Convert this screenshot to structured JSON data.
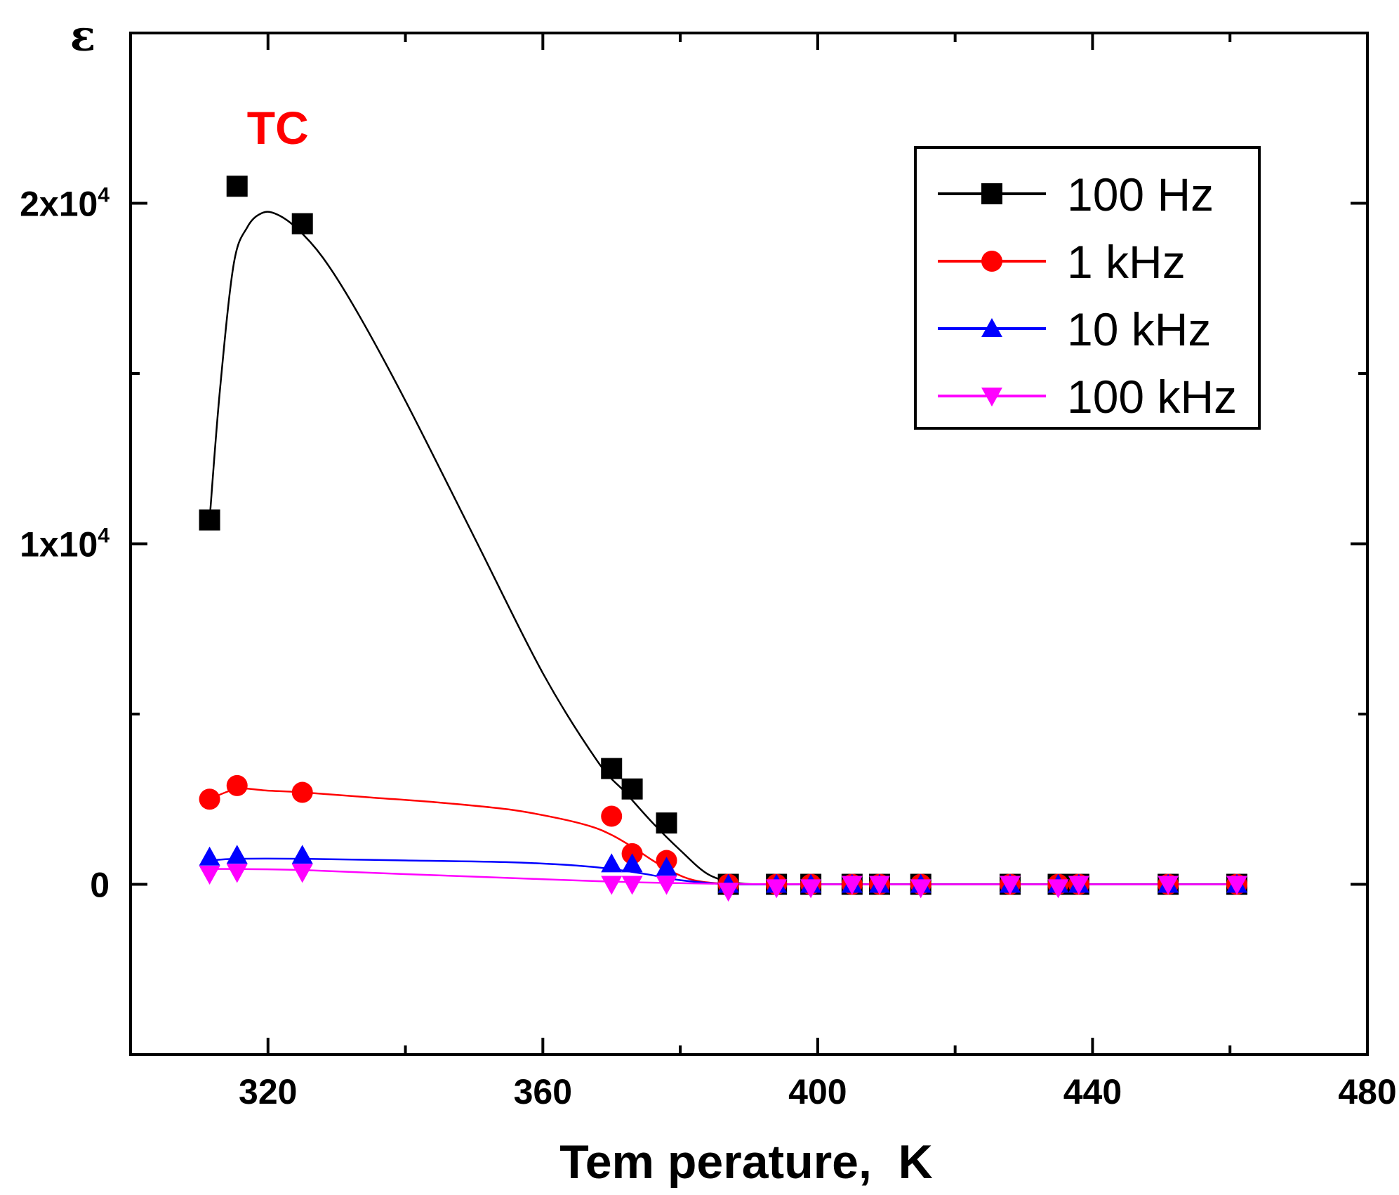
{
  "chart_data": {
    "type": "scatter",
    "title": "",
    "xlabel": "Tem perature,  K",
    "ylabel": "ε",
    "xlim": [
      300,
      480
    ],
    "ylim": [
      -5000,
      25000
    ],
    "x_ticks": [
      320,
      360,
      400,
      440,
      480
    ],
    "x_tick_labels": [
      "320",
      "360",
      "400",
      "440",
      "480"
    ],
    "y_ticks": [
      0,
      10000,
      20000
    ],
    "y_tick_labels": [
      {
        "base": "0",
        "exp": ""
      },
      {
        "base": "1x10",
        "exp": "4"
      },
      {
        "base": "2x10",
        "exp": "4"
      }
    ],
    "annotation": {
      "text": "TC",
      "x": 320,
      "y": 22200,
      "color": "#ff0000"
    },
    "legend_position": "top-right",
    "series": [
      {
        "name": "100 Hz",
        "color": "#000000",
        "marker": "square",
        "x": [
          311.5,
          315.5,
          325,
          370,
          373,
          378,
          387,
          394,
          399,
          405,
          409,
          415,
          428,
          435,
          438,
          451,
          461
        ],
        "y": [
          10700,
          20500,
          19400,
          3400,
          2800,
          1800,
          0,
          0,
          0,
          0,
          0,
          0,
          0,
          0,
          0,
          0,
          0
        ],
        "curve_x": [
          311.5,
          313,
          315,
          317,
          319,
          321,
          324,
          328,
          333,
          340,
          350,
          360,
          368,
          372,
          376,
          380,
          384,
          388,
          392,
          400,
          420,
          440,
          461
        ],
        "curve_y": [
          10700,
          14500,
          18200,
          19300,
          19700,
          19700,
          19300,
          18400,
          16800,
          14200,
          10200,
          6200,
          3600,
          2700,
          1800,
          1000,
          300,
          50,
          0,
          0,
          0,
          0,
          0
        ]
      },
      {
        "name": "1 kHz",
        "color": "#ff0000",
        "marker": "circle",
        "x": [
          311.5,
          315.5,
          325,
          370,
          373,
          378,
          387,
          394,
          399,
          405,
          409,
          415,
          428,
          435,
          438,
          451,
          461
        ],
        "y": [
          2500,
          2900,
          2700,
          2000,
          900,
          700,
          0,
          0,
          0,
          0,
          0,
          0,
          0,
          0,
          0,
          0,
          0
        ],
        "curve_x": [
          311.5,
          315.5,
          320,
          325,
          335,
          345,
          355,
          362,
          367,
          370,
          373,
          376,
          379,
          382,
          386,
          390,
          400,
          420,
          440,
          461
        ],
        "curve_y": [
          2500,
          2800,
          2750,
          2700,
          2550,
          2400,
          2200,
          1950,
          1700,
          1450,
          1100,
          700,
          350,
          120,
          20,
          0,
          0,
          0,
          0,
          0
        ]
      },
      {
        "name": "10 kHz",
        "color": "#0000ff",
        "marker": "triangle-up",
        "x": [
          311.5,
          315.5,
          325,
          370,
          373,
          378,
          387,
          394,
          399,
          405,
          409,
          415,
          428,
          435,
          438,
          451,
          461
        ],
        "y": [
          800,
          850,
          850,
          600,
          600,
          500,
          0,
          0,
          0,
          0,
          0,
          0,
          0,
          0,
          0,
          0,
          0
        ],
        "curve_x": [
          311.5,
          315.5,
          325,
          340,
          355,
          365,
          370,
          375,
          379,
          383,
          388,
          400,
          420,
          440,
          461
        ],
        "curve_y": [
          700,
          750,
          750,
          700,
          650,
          550,
          450,
          300,
          150,
          60,
          0,
          0,
          0,
          0,
          0
        ]
      },
      {
        "name": "100 kHz",
        "color": "#ff00ff",
        "marker": "triangle-down",
        "x": [
          311.5,
          315.5,
          325,
          370,
          373,
          378,
          387,
          394,
          399,
          405,
          409,
          415,
          428,
          435,
          438,
          451,
          461
        ],
        "y": [
          300,
          350,
          350,
          0,
          0,
          0,
          -200,
          -100,
          -100,
          0,
          0,
          -100,
          0,
          -100,
          0,
          0,
          0
        ],
        "curve_x": [
          311.5,
          315.5,
          325,
          340,
          360,
          370,
          378,
          388,
          400,
          420,
          440,
          461
        ],
        "curve_y": [
          450,
          450,
          420,
          300,
          150,
          80,
          40,
          10,
          0,
          0,
          0,
          0
        ]
      }
    ]
  }
}
